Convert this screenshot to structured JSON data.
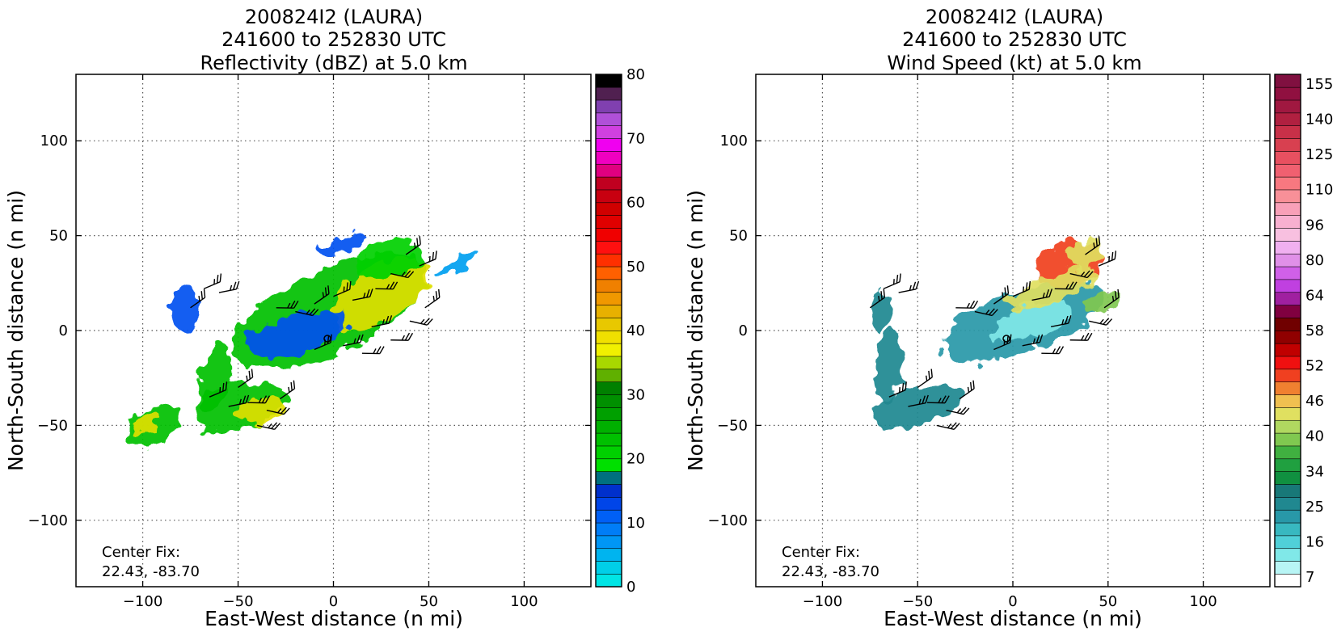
{
  "chart_data": [
    {
      "type": "heatmap",
      "panel": "left",
      "title_lines": [
        "200824I2 (LAURA)",
        "241600 to 252830 UTC",
        "Reflectivity (dBZ) at 5.0 km"
      ],
      "xlabel": "East-West distance (n mi)",
      "ylabel": "North-South distance (n mi)",
      "xlim": [
        -135,
        135
      ],
      "ylim": [
        -135,
        135
      ],
      "xticks": [
        -100,
        -50,
        0,
        50,
        100
      ],
      "yticks": [
        -100,
        -50,
        0,
        50,
        100
      ],
      "xtick_labels": [
        "−100",
        "−50",
        "0",
        "50",
        "100"
      ],
      "ytick_labels": [
        "−100",
        "−50",
        "0",
        "50",
        "100"
      ],
      "grid": true,
      "center_fix_label": "Center Fix:",
      "center_fix_value": "22.43, -83.70",
      "colorbar": {
        "min": 0,
        "max": 80,
        "tick_values": [
          0,
          10,
          20,
          30,
          40,
          50,
          60,
          70,
          80
        ],
        "tick_labels": [
          "0",
          "10",
          "20",
          "30",
          "40",
          "50",
          "60",
          "70",
          "80"
        ],
        "colors": [
          "#00e5e5",
          "#00cfe8",
          "#00b4ef",
          "#0096f5",
          "#007df7",
          "#0060f5",
          "#0045e8",
          "#0030cc",
          "#00707f",
          "#00e000",
          "#00d000",
          "#00c000",
          "#00b000",
          "#00a000",
          "#009000",
          "#008000",
          "#60b000",
          "#a8d800",
          "#f0f000",
          "#f0e000",
          "#e8c800",
          "#e8b000",
          "#f09800",
          "#f08000",
          "#ff6000",
          "#ff3000",
          "#ff1010",
          "#f00000",
          "#e00000",
          "#d00000",
          "#c80010",
          "#c00020",
          "#e00080",
          "#f000c0",
          "#f000f0",
          "#d040e0",
          "#b050d8",
          "#8040b0",
          "#502050",
          "#000000"
        ]
      },
      "echo_regions": [
        {
          "cx": -2,
          "cy": 10,
          "rx": 55,
          "ry": 22,
          "rot": -25,
          "color": "#00c000"
        },
        {
          "cx": 25,
          "cy": 20,
          "rx": 28,
          "ry": 14,
          "rot": -30,
          "color": "#e0e000"
        },
        {
          "cx": 30,
          "cy": 38,
          "rx": 18,
          "ry": 10,
          "rot": -10,
          "color": "#00d000"
        },
        {
          "cx": -20,
          "cy": -2,
          "rx": 28,
          "ry": 10,
          "rot": -15,
          "color": "#0050f0"
        },
        {
          "cx": -50,
          "cy": -40,
          "rx": 25,
          "ry": 12,
          "rot": -15,
          "color": "#00c000"
        },
        {
          "cx": -38,
          "cy": -42,
          "rx": 12,
          "ry": 7,
          "rot": -10,
          "color": "#e0e000"
        },
        {
          "cx": -62,
          "cy": -25,
          "rx": 8,
          "ry": 18,
          "rot": 10,
          "color": "#00c000"
        },
        {
          "cx": -78,
          "cy": 10,
          "rx": 8,
          "ry": 12,
          "rot": 0,
          "color": "#0050f0"
        },
        {
          "cx": -95,
          "cy": -50,
          "rx": 14,
          "ry": 10,
          "rot": -30,
          "color": "#00c000"
        },
        {
          "cx": -98,
          "cy": -48,
          "rx": 8,
          "ry": 5,
          "rot": -30,
          "color": "#e0e000"
        },
        {
          "cx": 65,
          "cy": 35,
          "rx": 12,
          "ry": 3,
          "rot": -35,
          "color": "#00a0f0"
        },
        {
          "cx": 5,
          "cy": 45,
          "rx": 12,
          "ry": 4,
          "rot": -20,
          "color": "#0050f0"
        }
      ]
    },
    {
      "type": "heatmap",
      "panel": "right",
      "title_lines": [
        "200824I2 (LAURA)",
        "241600 to 252830 UTC",
        "Wind Speed (kt) at 5.0 km"
      ],
      "xlabel": "East-West distance (n mi)",
      "ylabel": "North-South distance (n mi)",
      "xlim": [
        -135,
        135
      ],
      "ylim": [
        -135,
        135
      ],
      "xticks": [
        -100,
        -50,
        0,
        50,
        100
      ],
      "yticks": [
        -100,
        -50,
        0,
        50,
        100
      ],
      "xtick_labels": [
        "−100",
        "−50",
        "0",
        "50",
        "100"
      ],
      "ytick_labels": [
        "−100",
        "−50",
        "0",
        "50",
        "100"
      ],
      "grid": true,
      "center_fix_label": "Center Fix:",
      "center_fix_value": "22.43, -83.70",
      "colorbar": {
        "tick_values": [
          7,
          16,
          25,
          34,
          40,
          46,
          52,
          58,
          64,
          80,
          96,
          110,
          125,
          140,
          155
        ],
        "tick_labels": [
          "7",
          "16",
          "25",
          "34",
          "40",
          "46",
          "52",
          "58",
          "64",
          "80",
          "96",
          "110",
          "125",
          "140",
          "155"
        ],
        "colors": [
          "#ffffff",
          "#b8f5f5",
          "#80e8e8",
          "#50d0d8",
          "#38b8c0",
          "#2898a8",
          "#208890",
          "#187878",
          "#109040",
          "#20a040",
          "#40b040",
          "#80c850",
          "#b0d860",
          "#e0e060",
          "#f0c050",
          "#f08030",
          "#f04020",
          "#f01010",
          "#c00000",
          "#900000",
          "#700000",
          "#800040",
          "#a020a0",
          "#c040e0",
          "#d060e8",
          "#e090e8",
          "#f0b0f0",
          "#f8c0e0",
          "#f8b0d0",
          "#f8a0b8",
          "#f89098",
          "#f87880",
          "#f06070",
          "#e85060",
          "#d84050",
          "#c83048",
          "#b02040",
          "#a01840",
          "#901040",
          "#801040"
        ]
      },
      "echo_regions": [
        {
          "cx": 5,
          "cy": 5,
          "rx": 45,
          "ry": 16,
          "rot": -20,
          "color": "#2898a8"
        },
        {
          "cx": 10,
          "cy": 5,
          "rx": 22,
          "ry": 9,
          "rot": -20,
          "color": "#80e8e8"
        },
        {
          "cx": 30,
          "cy": 35,
          "rx": 18,
          "ry": 12,
          "rot": -15,
          "color": "#f04020"
        },
        {
          "cx": 38,
          "cy": 40,
          "rx": 10,
          "ry": 8,
          "rot": -15,
          "color": "#e0e060"
        },
        {
          "cx": 20,
          "cy": 22,
          "rx": 25,
          "ry": 7,
          "rot": -20,
          "color": "#e0e060"
        },
        {
          "cx": -50,
          "cy": -40,
          "rx": 25,
          "ry": 10,
          "rot": -15,
          "color": "#208890"
        },
        {
          "cx": -65,
          "cy": -20,
          "rx": 7,
          "ry": 20,
          "rot": 5,
          "color": "#208890"
        },
        {
          "cx": -70,
          "cy": 10,
          "rx": 6,
          "ry": 10,
          "rot": 0,
          "color": "#208890"
        },
        {
          "cx": 48,
          "cy": 15,
          "rx": 10,
          "ry": 5,
          "rot": -20,
          "color": "#80c850"
        }
      ]
    }
  ]
}
